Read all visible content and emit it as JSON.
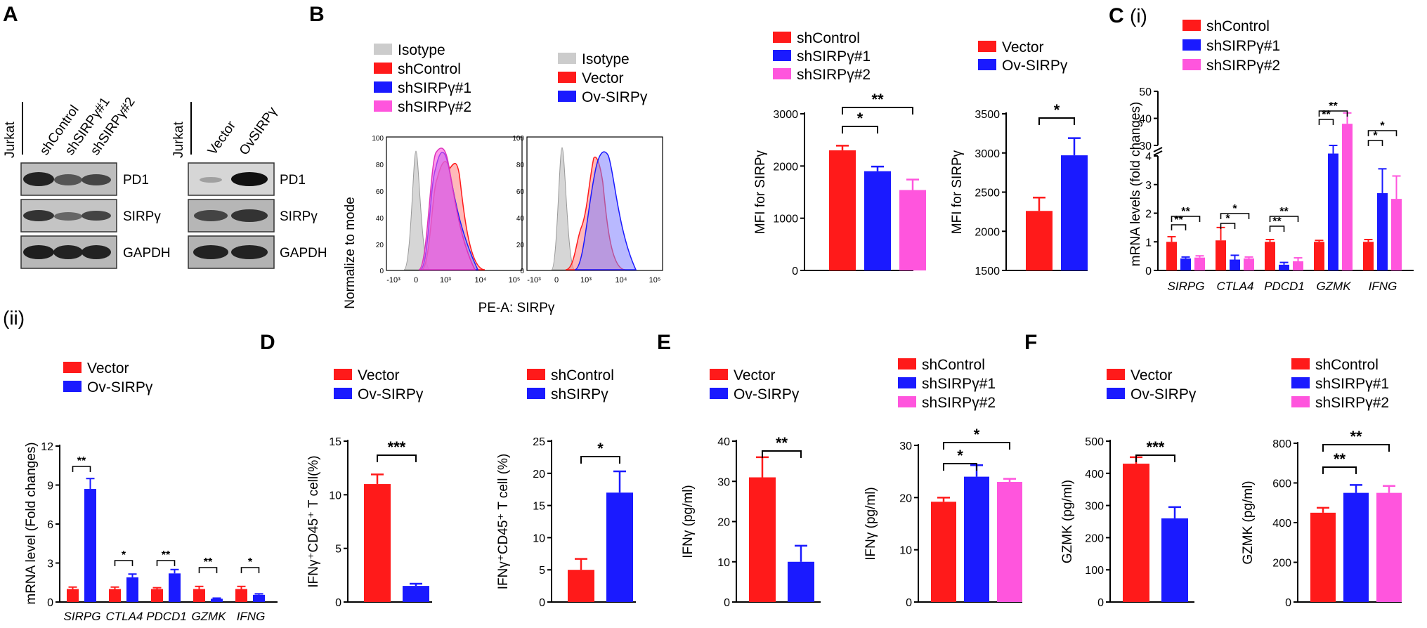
{
  "colors": {
    "red": "#ff1a1a",
    "blue": "#1a1aff",
    "pink": "#ff55dd",
    "grey": "#cccccc"
  },
  "panel_labels": {
    "A": "A",
    "B": "B",
    "C": "C",
    "Ci": "(i)",
    "Cii": "(ii)",
    "D": "D",
    "E": "E",
    "F": "F"
  },
  "western": {
    "left": {
      "cell": "Jurkat",
      "lanes": [
        "shControl",
        "shSIRPγ#1",
        "shSIRPγ#2"
      ],
      "bands": [
        "PD1",
        "SIRPγ",
        "GAPDH"
      ]
    },
    "right": {
      "cell": "Jurkat",
      "lanes": [
        "Vector",
        "OvSIRPγ"
      ],
      "bands": [
        "PD1",
        "SIRPγ",
        "GAPDH"
      ]
    }
  },
  "flow": {
    "legend_left": [
      "Isotype",
      "shControl",
      "shSIRPγ#1",
      "shSIRPγ#2"
    ],
    "legend_right": [
      "Isotype",
      "Vector",
      "Ov-SIRPγ"
    ],
    "ylabel": "Normalize to mode",
    "xlabel": "PE-A: SIRPγ",
    "yticks": [
      "100",
      "80",
      "60",
      "40",
      "20",
      "0"
    ],
    "xticks": [
      "-10³",
      "0",
      "10³",
      "10⁴",
      "10⁵"
    ]
  },
  "chart_data": [
    {
      "id": "B1",
      "type": "bar",
      "categories": [
        "shControl",
        "shSIRPγ#1",
        "shSIRPγ#2"
      ],
      "values": [
        2300,
        1900,
        1540
      ],
      "errors": [
        90,
        90,
        200
      ],
      "ylabel": "MFI for SIRPγ",
      "ylim": [
        0,
        3000
      ],
      "yticks": [
        "0",
        "1000",
        "2000",
        "3000"
      ],
      "legend": [
        "shControl",
        "shSIRPγ#1",
        "shSIRPγ#2"
      ],
      "significance": [
        "*",
        "**"
      ]
    },
    {
      "id": "B2",
      "type": "bar",
      "categories": [
        "Vector",
        "Ov-SIRPγ"
      ],
      "values": [
        2260,
        2970
      ],
      "errors": [
        170,
        220
      ],
      "ylabel": "MFI for SIRPγ",
      "ylim": [
        1500,
        3500
      ],
      "yticks": [
        "1500",
        "2000",
        "2500",
        "3000",
        "3500"
      ],
      "legend": [
        "Vector",
        "Ov-SIRPγ"
      ],
      "significance": [
        "*"
      ]
    },
    {
      "id": "Ci",
      "type": "bar",
      "categories": [
        "SIRPG",
        "CTLA4",
        "PDCD1",
        "GZMK",
        "IFNG"
      ],
      "series": [
        {
          "name": "shControl",
          "values": [
            1.0,
            1.05,
            1.0,
            1.0,
            1.0
          ],
          "errors": [
            0.18,
            0.45,
            0.08,
            0.05,
            0.08
          ]
        },
        {
          "name": "shSIRPγ#1",
          "values": [
            0.42,
            0.38,
            0.2,
            27,
            2.7
          ],
          "errors": [
            0.05,
            0.15,
            0.08,
            3,
            0.85
          ]
        },
        {
          "name": "shSIRPγ#2",
          "values": [
            0.45,
            0.42,
            0.32,
            38,
            2.5
          ],
          "errors": [
            0.06,
            0.05,
            0.12,
            4,
            0.8
          ]
        }
      ],
      "ylabel": "mRNA levels (fold changes)",
      "ylim": [
        0,
        50
      ],
      "axis_break": [
        4,
        30
      ],
      "yticks": [
        "0",
        "1",
        "2",
        "3",
        "4",
        "30",
        "40",
        "50"
      ],
      "significance": [
        "**",
        "**",
        "*",
        "*",
        "**",
        "**",
        "**",
        "**",
        "*",
        "*"
      ]
    },
    {
      "id": "Cii",
      "type": "bar",
      "categories": [
        "SIRPG",
        "CTLA4",
        "PDCD1",
        "GZMK",
        "IFNG"
      ],
      "series": [
        {
          "name": "Vector",
          "values": [
            1.0,
            1.0,
            1.0,
            1.0,
            1.0
          ],
          "errors": [
            0.15,
            0.15,
            0.1,
            0.2,
            0.2
          ]
        },
        {
          "name": "Ov-SIRPγ",
          "values": [
            8.7,
            1.9,
            2.2,
            0.25,
            0.55
          ],
          "errors": [
            0.8,
            0.25,
            0.3,
            0.05,
            0.08
          ]
        }
      ],
      "ylabel": "mRNA level (Fold changes)",
      "ylim": [
        0,
        12
      ],
      "yticks": [
        "0",
        "3",
        "6",
        "9",
        "12"
      ],
      "significance": [
        "**",
        "*",
        "**",
        "**",
        "*"
      ]
    },
    {
      "id": "D1",
      "type": "bar",
      "categories": [
        "Vector",
        "Ov-SIRPγ"
      ],
      "values": [
        11.0,
        1.5
      ],
      "errors": [
        0.9,
        0.2
      ],
      "ylabel": "IFNγ⁺CD45⁺ T cell(%)",
      "ylim": [
        0,
        15
      ],
      "yticks": [
        "0",
        "5",
        "10",
        "15"
      ],
      "legend": [
        "Vector",
        "Ov-SIRPγ"
      ],
      "significance": [
        "***"
      ]
    },
    {
      "id": "D2",
      "type": "bar",
      "categories": [
        "shControl",
        "shSIRPγ"
      ],
      "values": [
        5.0,
        17.0
      ],
      "errors": [
        1.7,
        3.3
      ],
      "ylabel": "IFNγ⁺CD45⁺ T cell (%)",
      "ylim": [
        0,
        25
      ],
      "yticks": [
        "0",
        "5",
        "10",
        "15",
        "20",
        "25"
      ],
      "legend": [
        "shControl",
        "shSIRPγ"
      ],
      "significance": [
        "*"
      ]
    },
    {
      "id": "E1",
      "type": "bar",
      "categories": [
        "Vector",
        "Ov-SIRPγ"
      ],
      "values": [
        31,
        10
      ],
      "errors": [
        5,
        4
      ],
      "ylabel": "IFNγ (pg/ml)",
      "ylim": [
        0,
        40
      ],
      "yticks": [
        "0",
        "10",
        "20",
        "30",
        "40"
      ],
      "legend": [
        "Vector",
        "Ov-SIRPγ"
      ],
      "significance": [
        "**"
      ]
    },
    {
      "id": "E2",
      "type": "bar",
      "categories": [
        "shControl",
        "shSIRPγ#1",
        "shSIRPγ#2"
      ],
      "values": [
        19.2,
        24.0,
        23.0
      ],
      "errors": [
        0.8,
        2.2,
        0.6
      ],
      "ylabel": "IFNγ (pg/ml)",
      "ylim": [
        0,
        30
      ],
      "yticks": [
        "0",
        "10",
        "20",
        "30"
      ],
      "legend": [
        "shControl",
        "shSIRPγ#1",
        "shSIRPγ#2"
      ],
      "significance": [
        "*",
        "*"
      ]
    },
    {
      "id": "F1",
      "type": "bar",
      "categories": [
        "Vector",
        "Ov-SIRPγ"
      ],
      "values": [
        430,
        260
      ],
      "errors": [
        20,
        35
      ],
      "ylabel": "GZMK (pg/ml)",
      "ylim": [
        0,
        500
      ],
      "yticks": [
        "0",
        "100",
        "200",
        "300",
        "400",
        "500"
      ],
      "legend": [
        "Vector",
        "Ov-SIRPγ"
      ],
      "significance": [
        "***"
      ]
    },
    {
      "id": "F2",
      "type": "bar",
      "categories": [
        "shControl",
        "shSIRPγ#1",
        "shSIRPγ#2"
      ],
      "values": [
        450,
        550,
        550
      ],
      "errors": [
        25,
        40,
        35
      ],
      "ylabel": "GZMK (pg/ml)",
      "ylim": [
        0,
        800
      ],
      "yticks": [
        "0",
        "200",
        "400",
        "600",
        "800"
      ],
      "legend": [
        "shControl",
        "shSIRPγ#1",
        "shSIRPγ#2"
      ],
      "significance": [
        "**",
        "**"
      ]
    }
  ]
}
